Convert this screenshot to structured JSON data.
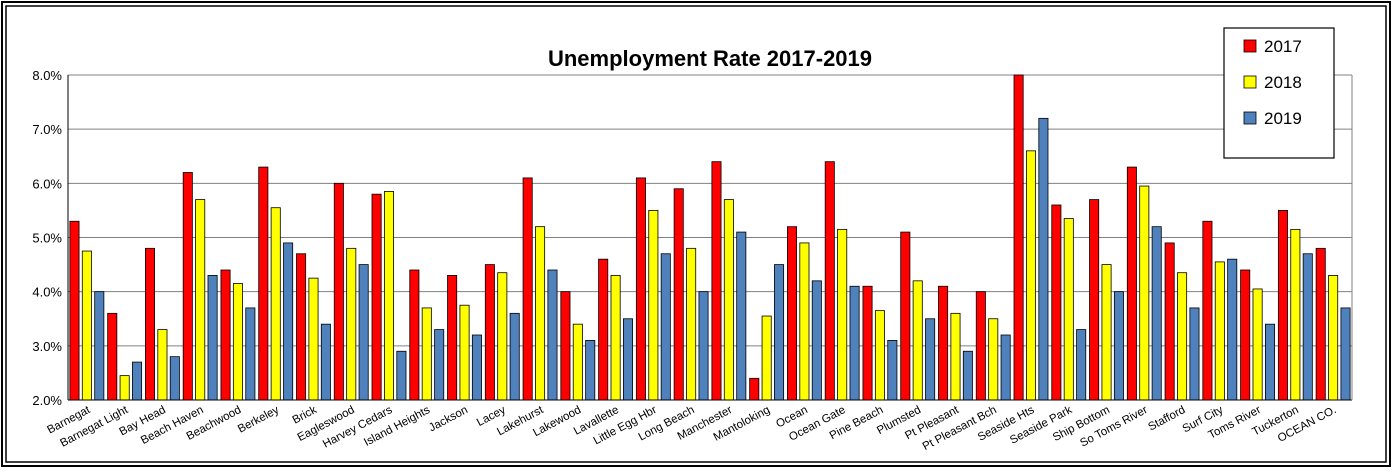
{
  "chart_data": {
    "type": "bar",
    "title": "Unemployment Rate 2017-2019",
    "xlabel": "",
    "ylabel": "",
    "ylim": [
      2.0,
      8.0
    ],
    "yticks": [
      2.0,
      3.0,
      4.0,
      5.0,
      6.0,
      7.0,
      8.0
    ],
    "ytick_labels": [
      "2.0%",
      "3.0%",
      "4.0%",
      "5.0%",
      "6.0%",
      "7.0%",
      "8.0%"
    ],
    "grid": true,
    "legend_position": "top-right",
    "categories": [
      "Barnegat",
      "Barnegat Light",
      "Bay Head",
      "Beach Haven",
      "Beachwood",
      "Berkeley",
      "Brick",
      "Eagleswood",
      "Harvey Cedars",
      "Island Heights",
      "Jackson",
      "Lacey",
      "Lakehurst",
      "Lakewood",
      "Lavallette",
      "Little Egg Hbr",
      "Long Beach",
      "Manchester",
      "Mantoloking",
      "Ocean",
      "Ocean Gate",
      "Pine Beach",
      "Plumsted",
      "Pt Pleasant",
      "Pt Pleasant Bch",
      "Seaside Hts",
      "Seaside Park",
      "Ship Bottom",
      "So Toms River",
      "Stafford",
      "Surf City",
      "Toms River",
      "Tuckerton",
      "OCEAN CO."
    ],
    "series": [
      {
        "name": "2017",
        "color": "#ff0000",
        "values": [
          5.3,
          3.6,
          4.8,
          6.2,
          4.4,
          6.3,
          4.7,
          6.0,
          5.8,
          4.4,
          4.3,
          4.5,
          6.1,
          4.0,
          4.6,
          6.1,
          5.9,
          6.4,
          2.4,
          5.2,
          6.4,
          4.1,
          5.1,
          4.1,
          4.0,
          8.0,
          5.6,
          5.7,
          6.3,
          4.9,
          5.3,
          4.4,
          5.5,
          4.8
        ]
      },
      {
        "name": "2018",
        "color": "#ffff00",
        "values": [
          4.75,
          2.45,
          3.3,
          5.7,
          4.15,
          5.55,
          4.25,
          4.8,
          5.85,
          3.7,
          3.75,
          4.35,
          5.2,
          3.4,
          4.3,
          5.5,
          4.8,
          5.7,
          3.55,
          4.9,
          5.15,
          3.65,
          4.2,
          3.6,
          3.5,
          6.6,
          5.35,
          4.5,
          5.95,
          4.35,
          4.55,
          4.05,
          5.15,
          4.3
        ]
      },
      {
        "name": "2019",
        "color": "#4f81bd",
        "values": [
          4.0,
          2.7,
          2.8,
          4.3,
          3.7,
          4.9,
          3.4,
          4.5,
          2.9,
          3.3,
          3.2,
          3.6,
          4.4,
          3.1,
          3.5,
          4.7,
          4.0,
          5.1,
          4.5,
          4.2,
          4.1,
          3.1,
          3.5,
          2.9,
          3.2,
          7.2,
          3.3,
          4.0,
          5.2,
          3.7,
          4.6,
          3.4,
          4.7,
          3.7
        ]
      }
    ]
  }
}
